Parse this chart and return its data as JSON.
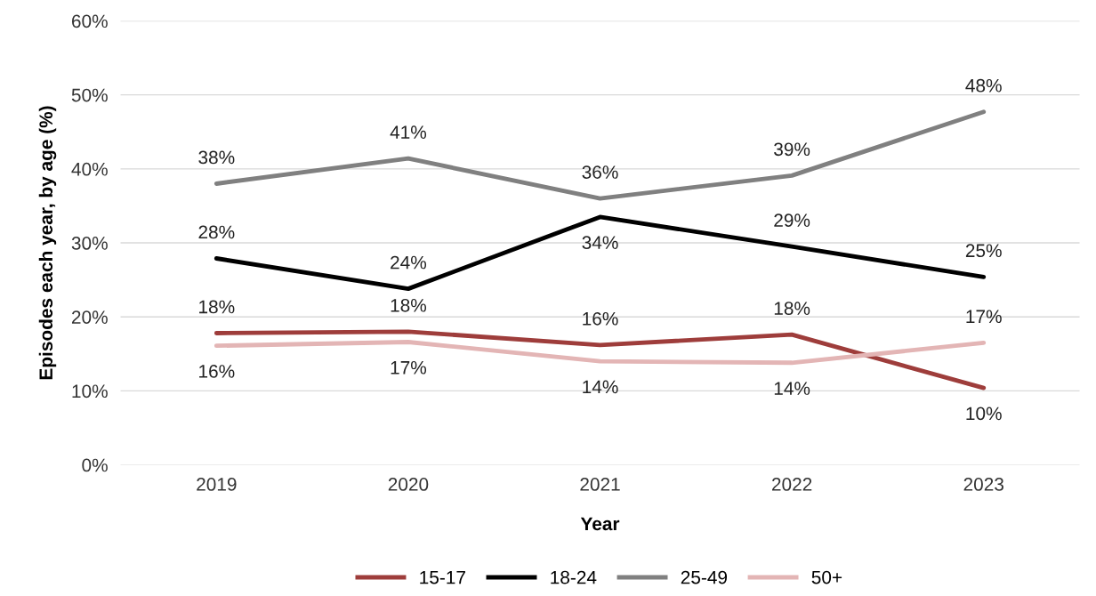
{
  "chart_data": {
    "type": "line",
    "xlabel": "Year",
    "ylabel": "Episodes each year, by age (%)",
    "categories": [
      "2019",
      "2020",
      "2021",
      "2022",
      "2023"
    ],
    "series": [
      {
        "name": "15-17",
        "color": "#9e3d3b",
        "values": [
          17.8,
          18,
          16.2,
          17.6,
          10.4
        ],
        "value_labels": [
          "18%",
          "18%",
          "16%",
          "18%",
          "10%"
        ]
      },
      {
        "name": "18-24",
        "color": "#000000",
        "values": [
          27.9,
          23.8,
          33.5,
          29.5,
          25.4
        ],
        "value_labels": [
          "28%",
          "24%",
          "34%",
          "29%",
          "25%"
        ]
      },
      {
        "name": "25-49",
        "color": "#808080",
        "values": [
          38,
          41.4,
          36,
          39.1,
          47.7
        ],
        "value_labels": [
          "38%",
          "41%",
          "36%",
          "39%",
          "48%"
        ]
      },
      {
        "name": "50+",
        "color": "#e3b5b5",
        "values": [
          16.1,
          16.6,
          14,
          13.8,
          16.5
        ],
        "value_labels": [
          "16%",
          "17%",
          "14%",
          "14%",
          "17%"
        ]
      }
    ],
    "ylim": [
      0,
      60
    ],
    "yticks": [
      {
        "value": 0,
        "label": "0%"
      },
      {
        "value": 10,
        "label": "10%"
      },
      {
        "value": 20,
        "label": "20%"
      },
      {
        "value": 30,
        "label": "30%"
      },
      {
        "value": 40,
        "label": "40%"
      },
      {
        "value": 50,
        "label": "50%"
      },
      {
        "value": 60,
        "label": "60%"
      }
    ],
    "grid": "y",
    "legend": "bottom",
    "marker": "none",
    "line_style": "solid"
  }
}
